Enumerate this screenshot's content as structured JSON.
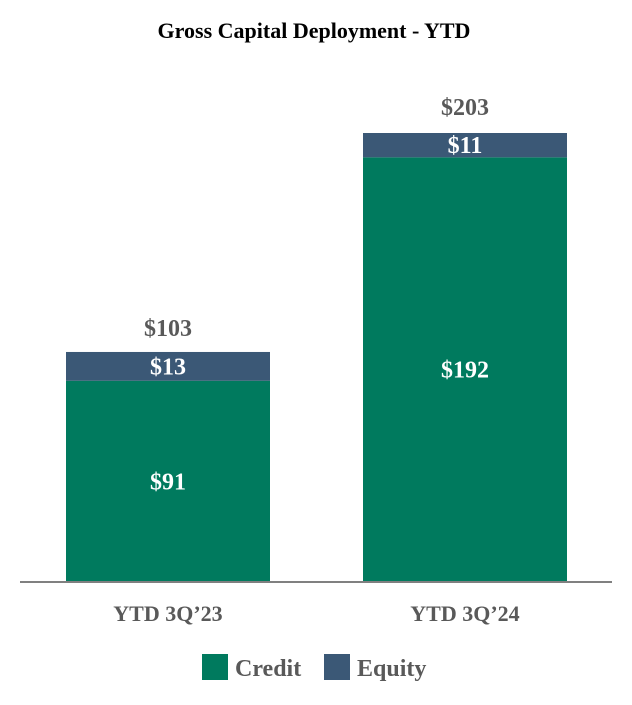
{
  "chart_data": {
    "type": "bar",
    "stacked": true,
    "title": "Gross Capital Deployment - YTD",
    "categories": [
      "YTD 3Q’23",
      "YTD 3Q’24"
    ],
    "series": [
      {
        "name": "Credit",
        "values": [
          91,
          192
        ],
        "labels": [
          "$91",
          "$192"
        ],
        "color": "#007A5E"
      },
      {
        "name": "Equity",
        "values": [
          13,
          11
        ],
        "labels": [
          "$13",
          "$11"
        ],
        "color": "#3B5876"
      }
    ],
    "totals": [
      103,
      203
    ],
    "total_labels": [
      "$103",
      "$203"
    ],
    "xlabel": "",
    "ylabel": "",
    "ylim": [
      0,
      203
    ],
    "grid": false,
    "legend_position": "bottom-center",
    "colors": {
      "text": "#595959",
      "title": "#000000",
      "inside_label": "#ffffff",
      "axis": "#808080"
    }
  }
}
